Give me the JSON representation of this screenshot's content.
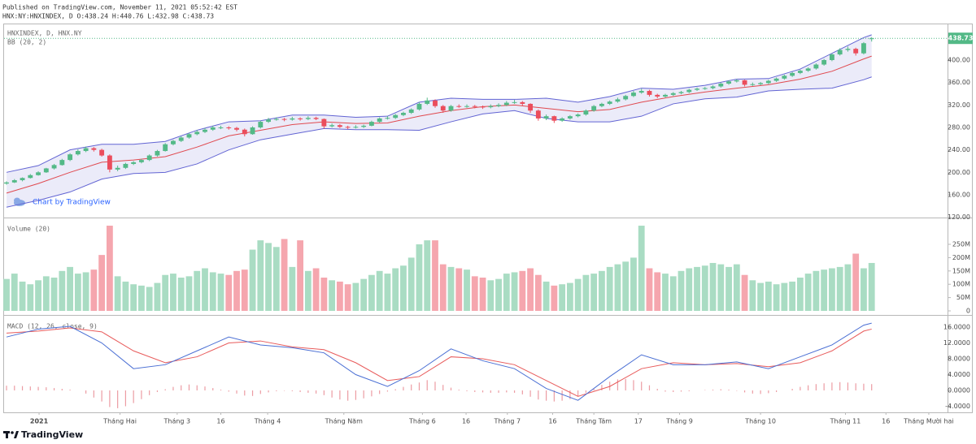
{
  "header": {
    "published": "Published on TradingView.com, November 11, 2021 05:52:42 EST",
    "symbol": "HNX:NY:HNXINDEX, D  O:438.24 H:440.76 L:432.98 C:438.73"
  },
  "footer": {
    "brand": "TradingView"
  },
  "chart_data": [
    {
      "type": "candlestick",
      "title": "HNXINDEX, D, HNX.NY",
      "indicator": "BB (20, 2)",
      "watermark": "Chart by TradingView",
      "up_color": "#53b987",
      "down_color": "#eb4d5c",
      "open": [
        180,
        182,
        186,
        190,
        195,
        200,
        207,
        213,
        222,
        232,
        238,
        243,
        240,
        230,
        205,
        208,
        215,
        218,
        222,
        230,
        238,
        250,
        256,
        262,
        268,
        272,
        276,
        280,
        280,
        279,
        276,
        268,
        280,
        290,
        294,
        295,
        294,
        296,
        295,
        297,
        295,
        282,
        284,
        281,
        280,
        281,
        283,
        290,
        296,
        297,
        302,
        306,
        312,
        322,
        328,
        318,
        310,
        318,
        317,
        318,
        317,
        316,
        318,
        320,
        324,
        325,
        322,
        310,
        296,
        300,
        292,
        296,
        300,
        303,
        310,
        318,
        322,
        326,
        330,
        336,
        342,
        345,
        338,
        335,
        338,
        341,
        343,
        347,
        349,
        350,
        353,
        358,
        362,
        364,
        356,
        357,
        359,
        363,
        367,
        372,
        377,
        381,
        385,
        392,
        400,
        410,
        418,
        420,
        412,
        438.24
      ],
      "high": [
        184,
        188,
        191,
        197,
        202,
        208,
        215,
        224,
        234,
        241,
        246,
        245,
        242,
        232,
        212,
        217,
        220,
        224,
        232,
        240,
        252,
        258,
        264,
        270,
        275,
        279,
        283,
        283,
        282,
        281,
        278,
        282,
        292,
        297,
        298,
        297,
        299,
        298,
        300,
        299,
        296,
        287,
        286,
        283,
        284,
        285,
        292,
        298,
        300,
        304,
        308,
        314,
        325,
        333,
        330,
        320,
        320,
        321,
        321,
        320,
        319,
        321,
        323,
        327,
        329,
        327,
        323,
        312,
        303,
        301,
        298,
        302,
        305,
        312,
        320,
        324,
        328,
        333,
        338,
        345,
        349,
        347,
        340,
        340,
        343,
        345,
        349,
        351,
        352,
        355,
        360,
        364,
        366,
        365,
        360,
        361,
        365,
        369,
        374,
        379,
        383,
        387,
        394,
        402,
        412,
        421,
        424,
        422,
        432,
        440.76
      ],
      "low": [
        178,
        181,
        184,
        189,
        194,
        199,
        205,
        212,
        220,
        230,
        236,
        237,
        228,
        200,
        202,
        206,
        213,
        216,
        220,
        228,
        237,
        248,
        254,
        260,
        266,
        270,
        274,
        277,
        276,
        273,
        264,
        267,
        278,
        288,
        292,
        291,
        292,
        292,
        293,
        293,
        278,
        280,
        279,
        277,
        278,
        279,
        282,
        288,
        294,
        295,
        300,
        304,
        310,
        320,
        315,
        306,
        308,
        315,
        315,
        314,
        313,
        314,
        316,
        318,
        322,
        319,
        306,
        292,
        293,
        288,
        290,
        294,
        298,
        301,
        308,
        316,
        320,
        324,
        328,
        334,
        340,
        335,
        332,
        333,
        336,
        339,
        341,
        345,
        347,
        348,
        351,
        356,
        360,
        353,
        354,
        355,
        357,
        361,
        365,
        370,
        375,
        379,
        383,
        390,
        398,
        408,
        415,
        408,
        410,
        432.98
      ],
      "close": [
        182,
        186,
        190,
        195,
        200,
        207,
        213,
        222,
        232,
        238,
        243,
        240,
        230,
        205,
        208,
        215,
        218,
        222,
        230,
        238,
        250,
        256,
        262,
        268,
        272,
        276,
        280,
        280,
        279,
        276,
        268,
        280,
        290,
        294,
        295,
        294,
        296,
        295,
        297,
        295,
        282,
        284,
        281,
        280,
        281,
        283,
        290,
        296,
        297,
        302,
        306,
        312,
        322,
        328,
        318,
        310,
        318,
        317,
        318,
        317,
        316,
        318,
        320,
        324,
        325,
        322,
        310,
        296,
        300,
        292,
        296,
        300,
        303,
        310,
        318,
        322,
        326,
        330,
        336,
        342,
        345,
        338,
        335,
        338,
        341,
        343,
        347,
        349,
        350,
        353,
        358,
        362,
        364,
        356,
        357,
        359,
        363,
        367,
        372,
        377,
        381,
        385,
        392,
        400,
        410,
        418,
        420,
        412,
        430,
        438.73
      ],
      "last_value": 438.73,
      "bands": {
        "x": [
          0,
          4,
          8,
          12,
          16,
          20,
          24,
          28,
          32,
          36,
          40,
          44,
          48,
          52,
          56,
          60,
          64,
          68,
          72,
          76,
          80,
          84,
          88,
          92,
          96,
          100,
          104,
          108,
          109
        ],
        "upper": [
          200,
          212,
          240,
          250,
          250,
          255,
          275,
          290,
          292,
          302,
          302,
          298,
          300,
          325,
          332,
          330,
          330,
          332,
          325,
          335,
          350,
          348,
          355,
          366,
          367,
          384,
          412,
          440,
          445
        ],
        "middle": [
          163,
          180,
          200,
          218,
          222,
          228,
          245,
          265,
          275,
          285,
          290,
          287,
          288,
          300,
          310,
          317,
          320,
          314,
          308,
          312,
          325,
          335,
          343,
          350,
          356,
          366,
          380,
          402,
          407
        ],
        "lower": [
          138,
          150,
          165,
          188,
          198,
          200,
          215,
          240,
          258,
          268,
          278,
          276,
          276,
          275,
          290,
          304,
          310,
          296,
          290,
          290,
          300,
          322,
          331,
          334,
          345,
          348,
          350,
          365,
          370
        ],
        "band_color": "#6264d3",
        "middle_color": "#e0494f",
        "fill": "rgba(98,100,210,0.13)"
      },
      "ylim": [
        119.5,
        463.6
      ],
      "yticks": [
        {
          "value": 120,
          "label": "120.00"
        },
        {
          "value": 160,
          "label": "160.00"
        },
        {
          "value": 200,
          "label": "200.00"
        },
        {
          "value": 240,
          "label": "240.00"
        },
        {
          "value": 280,
          "label": "280.00"
        },
        {
          "value": 320,
          "label": "320.00"
        },
        {
          "value": 360,
          "label": "360.00"
        },
        {
          "value": 400,
          "label": "400.00"
        }
      ]
    },
    {
      "type": "bar",
      "title": "Volume (20)",
      "up_color": "#a9dcc3",
      "down_color": "#f5a6ae",
      "values": [
        120,
        140,
        110,
        100,
        115,
        130,
        125,
        150,
        165,
        140,
        145,
        155,
        210,
        320,
        130,
        110,
        100,
        95,
        90,
        105,
        135,
        140,
        125,
        130,
        150,
        160,
        145,
        140,
        135,
        150,
        155,
        230,
        265,
        255,
        240,
        270,
        165,
        265,
        150,
        160,
        125,
        115,
        110,
        100,
        105,
        120,
        135,
        150,
        140,
        160,
        170,
        200,
        250,
        265,
        265,
        175,
        165,
        160,
        155,
        130,
        125,
        115,
        120,
        140,
        145,
        150,
        160,
        135,
        110,
        95,
        100,
        105,
        120,
        135,
        140,
        150,
        165,
        175,
        185,
        200,
        320,
        160,
        145,
        140,
        130,
        150,
        160,
        165,
        170,
        180,
        175,
        165,
        175,
        135,
        115,
        105,
        110,
        100,
        105,
        110,
        125,
        140,
        150,
        155,
        160,
        165,
        175,
        215,
        160,
        180
      ],
      "ylim": [
        -15.2,
        344.5
      ],
      "yticks": [
        0,
        {
          "value": 50,
          "label": "50M"
        },
        {
          "value": 100,
          "label": "100M"
        },
        {
          "value": 150,
          "label": "150M"
        },
        {
          "value": 200,
          "label": "200M"
        },
        {
          "value": 250,
          "label": "250M"
        }
      ]
    },
    {
      "type": "macd",
      "title": "MACD (12, 26, close, 9)",
      "macd_color": "#4a6fd4",
      "signal_color": "#e85b5b",
      "hist_color": "#ec9ca3",
      "x": [
        0,
        4,
        8,
        12,
        16,
        20,
        24,
        28,
        32,
        36,
        40,
        44,
        48,
        52,
        56,
        60,
        64,
        68,
        72,
        76,
        80,
        84,
        88,
        92,
        96,
        100,
        104,
        108,
        109
      ],
      "macd": [
        13.5,
        15.5,
        16.2,
        12.0,
        5.5,
        6.5,
        10.0,
        13.5,
        11.5,
        10.8,
        9.5,
        4.0,
        1.0,
        5.0,
        10.5,
        7.5,
        5.5,
        0.5,
        -2.5,
        3.5,
        9.0,
        6.5,
        6.5,
        7.2,
        5.5,
        8.5,
        11.5,
        16.5,
        17.0
      ],
      "signal": [
        14.5,
        15.0,
        15.8,
        14.8,
        10.0,
        7.0,
        8.5,
        12.0,
        12.5,
        11.0,
        10.3,
        7.0,
        2.5,
        3.5,
        8.5,
        8.0,
        6.5,
        2.5,
        -1.5,
        1.0,
        5.5,
        7.0,
        6.5,
        6.8,
        6.0,
        7.0,
        10.0,
        15.0,
        15.5
      ],
      "histogram": [
        1.2,
        1.2,
        1.1,
        1.0,
        0.9,
        0.8,
        0.6,
        0.4,
        0.2,
        0,
        -0.8,
        -1.8,
        -2.8,
        -4.2,
        -4.5,
        -4.0,
        -3.2,
        -2.2,
        -1.2,
        -0.4,
        0.3,
        0.9,
        1.3,
        1.5,
        1.3,
        1.0,
        0.6,
        0.2,
        -0.3,
        -0.8,
        -1.3,
        -1.4,
        -0.9,
        -0.5,
        -0.2,
        -0.1,
        -0.2,
        -0.4,
        -0.6,
        -0.8,
        -1.2,
        -1.8,
        -2.3,
        -2.6,
        -2.4,
        -2.0,
        -1.5,
        -0.9,
        -0.3,
        0.3,
        0.9,
        1.5,
        2.0,
        2.6,
        2.2,
        1.4,
        0.7,
        0.2,
        -0.2,
        -0.4,
        -0.5,
        -0.6,
        -0.6,
        -0.5,
        -0.6,
        -1.0,
        -1.6,
        -2.3,
        -2.6,
        -2.8,
        -2.6,
        -2.2,
        -1.5,
        -0.6,
        0.4,
        1.4,
        2.2,
        2.8,
        2.9,
        2.6,
        2.2,
        1.3,
        0.4,
        -0.3,
        -0.4,
        -0.3,
        -0.2,
        0,
        0.1,
        0.2,
        0.3,
        0.2,
        -0.1,
        -0.5,
        -0.8,
        -0.9,
        -0.7,
        -0.4,
        0,
        0.4,
        0.9,
        1.3,
        1.6,
        1.8,
        2.0,
        2.1,
        2.0,
        1.8,
        1.7,
        1.6
      ],
      "ylim": [
        -5.54,
        18.67
      ],
      "yticks": [
        {
          "value": -4,
          "label": "-4.0000"
        },
        {
          "value": 0,
          "label": "0.0000"
        },
        {
          "value": 4,
          "label": "4.0000"
        },
        {
          "value": 8,
          "label": "8.0000"
        },
        {
          "value": 12,
          "label": "12.0000"
        },
        {
          "value": 16,
          "label": "16.0000"
        }
      ],
      "xlim": [
        -0.31,
        118.56
      ],
      "xticks": [
        {
          "value": 4.1,
          "label": "2021"
        },
        {
          "value": 14.3,
          "label": "Tháng Hai"
        },
        {
          "value": 21.5,
          "label": "Tháng 3"
        },
        {
          "value": 27,
          "label": "16"
        },
        {
          "value": 32.9,
          "label": "Tháng 4"
        },
        {
          "value": 42.5,
          "label": "Tháng Năm"
        },
        {
          "value": 52.4,
          "label": "Tháng 6"
        },
        {
          "value": 57.9,
          "label": "16"
        },
        {
          "value": 63.1,
          "label": "Tháng 7"
        },
        {
          "value": 68.8,
          "label": "16"
        },
        {
          "value": 74,
          "label": "Tháng Tám"
        },
        {
          "value": 79.6,
          "label": "17"
        },
        {
          "value": 84.8,
          "label": "Tháng 9"
        },
        {
          "value": 95,
          "label": "Tháng 10"
        },
        {
          "value": 105.7,
          "label": "Tháng 11"
        },
        {
          "value": 110.8,
          "label": "16"
        },
        {
          "value": 116.2,
          "label": "Tháng Mười hai"
        }
      ]
    }
  ]
}
